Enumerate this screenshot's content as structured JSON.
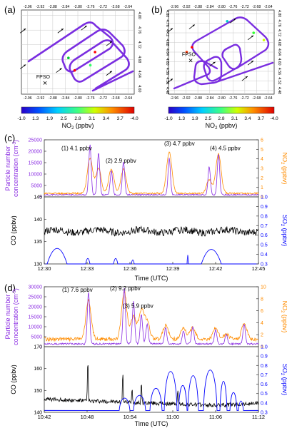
{
  "colors": {
    "purple": "#8a2be2",
    "orange": "#ff8c00",
    "black": "#000000",
    "blue": "#0000ff",
    "red": "#ff0000",
    "grid": "#c8c8c8",
    "axis": "#333333"
  },
  "panel_labels": {
    "a": "(a)",
    "b": "(b)",
    "c": "(c)",
    "d": "(d)"
  },
  "chart_data": [
    {
      "id": "a",
      "type": "map-track",
      "x_ticks": [
        "-2.96",
        "-2.92",
        "-2.88",
        "-2.84",
        "-2.80",
        "-2.76",
        "-2.72",
        "-2.68",
        "-2.64"
      ],
      "y_ticks": [
        "4.80",
        "4.76",
        "4.72",
        "4.68",
        "4.64",
        "4.60"
      ],
      "xlim": [
        -2.98,
        -2.62
      ],
      "ylim": [
        4.585,
        4.815
      ],
      "fpso_label": "FPSO",
      "fpso": {
        "lon": -2.905,
        "lat": 4.622
      },
      "arrows": [
        {
          "lon": -2.975,
          "lat": 4.758
        },
        {
          "lon": -2.975,
          "lat": 4.66
        },
        {
          "lon": -2.855,
          "lat": 4.758
        },
        {
          "lon": -2.78,
          "lat": 4.766
        },
        {
          "lon": -2.7,
          "lat": 4.723
        },
        {
          "lon": -2.7,
          "lat": 4.642
        },
        {
          "lon": -2.86,
          "lat": 4.65
        }
      ],
      "hotspots": [
        {
          "lon": -2.745,
          "lat": 4.7,
          "color": "#ff0000"
        },
        {
          "lon": -2.83,
          "lat": 4.684,
          "color": "#00cc33"
        },
        {
          "lon": -2.76,
          "lat": 4.664,
          "color": "#33ff66"
        },
        {
          "lon": -2.81,
          "lat": 4.65,
          "color": "#ff0000"
        }
      ],
      "colorbar": {
        "ticks": [
          "-1.0",
          "1.3",
          "1.9",
          "2.5",
          "2.8",
          "3.1",
          "3.4",
          "3.7",
          "-4.0"
        ],
        "label": "NO",
        "label_sub": "2",
        "unit": " (ppbv)"
      }
    },
    {
      "id": "b",
      "type": "map-track",
      "x_ticks": [
        "-2.96",
        "-2.92",
        "-2.88",
        "-2.84",
        "-2.80",
        "-2.76",
        "-2.72",
        "-2.68",
        "-2.64"
      ],
      "y_ticks": [
        "4.80",
        "4.76",
        "4.72",
        "4.68",
        "4.64",
        "4.60",
        "4.56",
        "4.52",
        "4.48"
      ],
      "xlim": [
        -2.98,
        -2.62
      ],
      "ylim": [
        4.465,
        4.815
      ],
      "fpso_label": "FPSO",
      "fpso": {
        "lon": -2.905,
        "lat": 4.615
      },
      "arrows": [
        {
          "lon": -2.975,
          "lat": 4.73
        },
        {
          "lon": -2.975,
          "lat": 4.52
        },
        {
          "lon": -2.9,
          "lat": 4.745
        },
        {
          "lon": -2.76,
          "lat": 4.77
        },
        {
          "lon": -2.7,
          "lat": 4.7
        },
        {
          "lon": -2.7,
          "lat": 4.595
        },
        {
          "lon": -2.72,
          "lat": 4.53
        },
        {
          "lon": -2.83,
          "lat": 4.59
        }
      ],
      "hotspots": [
        {
          "lon": -2.9,
          "lat": 4.66,
          "color": "#ff0000"
        },
        {
          "lon": -2.918,
          "lat": 4.64,
          "color": "#ff3300"
        },
        {
          "lon": -2.78,
          "lat": 4.768,
          "color": "#00cccc"
        },
        {
          "lon": -2.69,
          "lat": 4.72,
          "color": "#33ff33"
        },
        {
          "lon": -2.655,
          "lat": 4.69,
          "color": "#ccff00"
        }
      ],
      "colorbar": {
        "ticks": [
          "-1.0",
          "1.3",
          "1.9",
          "2.5",
          "2.8",
          "3.1",
          "3.4",
          "3.7",
          "-4.0"
        ],
        "label": "NO",
        "label_sub": "2",
        "unit": " (ppbv)"
      }
    },
    {
      "id": "c-top",
      "type": "line",
      "ylabel": "Particle number concentration (cm-3)",
      "ylabel_line1": "Particle number",
      "ylabel_line2": "concentration (cm",
      "ylabel_sup": "-3",
      "ylabel_close": ")",
      "y2label": "NO",
      "y2label_sub": "2",
      "y2label_unit": " (ppbv)",
      "xlim": [
        0,
        15
      ],
      "ylim": [
        0,
        25000
      ],
      "y2lim": [
        0,
        6
      ],
      "y_ticks": [
        "0",
        "5000",
        "10000",
        "15000",
        "20000",
        "25000"
      ],
      "y_tick_values": [
        0,
        5000,
        10000,
        15000,
        20000,
        25000
      ],
      "y2_ticks": [
        "0",
        "1",
        "2",
        "3",
        "4",
        "5",
        "6"
      ],
      "y2_tick_values": [
        0,
        1,
        2,
        3,
        4,
        5,
        6
      ],
      "annotations": [
        {
          "text": "(1) 4.1 ppbv",
          "x": 1.2,
          "y": 20500
        },
        {
          "text": "(2) 2.9 ppbv",
          "x": 4.3,
          "y": 15000
        },
        {
          "text": "(3) 4.7 ppbv",
          "x": 8.4,
          "y": 22500
        },
        {
          "text": "(4) 4.5 ppbv",
          "x": 11.6,
          "y": 20500
        }
      ],
      "peaks": [
        {
          "x": 3.2,
          "p": 22000,
          "n": 4.1
        },
        {
          "x": 3.8,
          "p": 18500,
          "n": 3.0
        },
        {
          "x": 4.7,
          "p": 10500,
          "n": 2.9
        },
        {
          "x": 5.55,
          "p": 14500,
          "n": 2.9
        },
        {
          "x": 8.75,
          "p": 16000,
          "n": 4.7
        },
        {
          "x": 11.55,
          "p": 12500,
          "n": 1.8
        },
        {
          "x": 12.2,
          "p": 18000,
          "n": 4.5
        }
      ]
    },
    {
      "id": "c-bottom",
      "type": "line",
      "ylabel": "CO (ppbv)",
      "y2label": "SO",
      "y2label_sub": "2",
      "y2label_unit": " (ppbv)",
      "xlim": [
        0,
        15
      ],
      "ylim": [
        130,
        145
      ],
      "y2lim": [
        0.3,
        1.0
      ],
      "y_ticks": [
        "130",
        "135",
        "140",
        "145"
      ],
      "y_tick_values": [
        130,
        135,
        140,
        145
      ],
      "y2_ticks": [
        "0.3",
        "0.4",
        "0.5",
        "0.6",
        "0.7",
        "0.8",
        "0.9",
        "1.0"
      ],
      "y2_tick_values": [
        0.3,
        0.4,
        0.5,
        0.6,
        0.7,
        0.8,
        0.9,
        1.0
      ],
      "x_ticks": [
        "12:30",
        "12:33",
        "12:36",
        "12:39",
        "12:42",
        "12:45"
      ],
      "x_tick_values": [
        0,
        3,
        6,
        9,
        12,
        15
      ],
      "xlabel": "Time (UTC)",
      "co_baseline": 137.3,
      "so2_events": [
        {
          "x0": 0.2,
          "x1": 1.6,
          "peak": 0.58
        },
        {
          "x0": 2.9,
          "x1": 3.2,
          "peak": 0.37
        },
        {
          "x0": 4.85,
          "x1": 5.15,
          "peak": 0.37
        },
        {
          "x0": 6.1,
          "x1": 6.3,
          "peak": 0.34
        },
        {
          "x0": 10.0,
          "x1": 10.1,
          "peak": 0.44
        },
        {
          "x0": 11.0,
          "x1": 12.4,
          "peak": 0.56
        }
      ]
    },
    {
      "id": "d-top",
      "type": "line",
      "ylabel": "Particle number concentration (cm-3)",
      "ylabel_line1": "Particle number",
      "ylabel_line2": "concentration (cm",
      "ylabel_sup": "-3",
      "ylabel_close": ")",
      "y2label": "NO",
      "y2label_sub": "2",
      "y2label_unit": " (ppbv)",
      "xlim": [
        0,
        30
      ],
      "ylim": [
        0,
        30000
      ],
      "y2lim": [
        0,
        10
      ],
      "y_ticks": [
        "0",
        "5000",
        "10000",
        "15000",
        "20000",
        "25000",
        "30000"
      ],
      "y_tick_values": [
        0,
        5000,
        10000,
        15000,
        20000,
        25000,
        30000
      ],
      "y2_ticks": [
        "0",
        "2",
        "4",
        "6",
        "8",
        "10"
      ],
      "y2_tick_values": [
        0,
        2,
        4,
        6,
        8,
        10
      ],
      "annotations": [
        {
          "text": "(1) 7.6 ppbv",
          "x": 2.5,
          "y": 27500
        },
        {
          "text": "(2) 9.2 ppbv",
          "x": 9.2,
          "y": 28200
        },
        {
          "text": "(3) 5.9 ppbv",
          "x": 11.0,
          "y": 19500
        }
      ],
      "peaks": [
        {
          "x": 6.2,
          "p": 25500,
          "n": 7.6
        },
        {
          "x": 11.2,
          "p": 28000,
          "n": 9.2
        },
        {
          "x": 12.5,
          "p": 21000,
          "n": 5.0
        },
        {
          "x": 13.6,
          "p": 15000,
          "n": 5.9
        },
        {
          "x": 14.4,
          "p": 10000,
          "n": 4.0
        },
        {
          "x": 17.0,
          "p": 8000,
          "n": 3.5
        },
        {
          "x": 19.5,
          "p": 6500,
          "n": 3.0
        },
        {
          "x": 20.8,
          "p": 8500,
          "n": 3.2
        },
        {
          "x": 24.0,
          "p": 7000,
          "n": 3.0
        },
        {
          "x": 25.5,
          "p": 5000,
          "n": 2.0
        },
        {
          "x": 28.0,
          "p": 9500,
          "n": 3.8
        }
      ]
    },
    {
      "id": "d-bottom",
      "type": "line",
      "ylabel": "CO (ppbv)",
      "y2label": "SO",
      "y2label_sub": "2",
      "y2label_unit": " (ppbv)",
      "xlim": [
        0,
        30
      ],
      "ylim": [
        140,
        170
      ],
      "y2lim": [
        0.3,
        1.0
      ],
      "y_ticks": [
        "140",
        "150",
        "160",
        "170"
      ],
      "y_tick_values": [
        140,
        150,
        160,
        170
      ],
      "y2_ticks": [
        "0.3",
        "0.4",
        "0.5",
        "0.6",
        "0.7",
        "0.8",
        "0.9",
        "1.0"
      ],
      "y2_tick_values": [
        0.3,
        0.4,
        0.5,
        0.6,
        0.7,
        0.8,
        0.9,
        1.0
      ],
      "x_ticks": [
        "10:42",
        "10:48",
        "10:54",
        "11:00",
        "11:06",
        "11:12"
      ],
      "x_tick_values": [
        0,
        6,
        12,
        18,
        24,
        30
      ],
      "xlabel": "Time (UTC)",
      "co_spikes": [
        {
          "x": 6.1,
          "v": 167
        },
        {
          "x": 11.0,
          "v": 160
        },
        {
          "x": 12.3,
          "v": 152
        },
        {
          "x": 13.6,
          "v": 155
        },
        {
          "x": 18.7,
          "v": 151
        }
      ],
      "so2_events": [
        {
          "x0": 10.5,
          "x1": 12.0,
          "peak": 0.48
        },
        {
          "x0": 12.5,
          "x1": 14.2,
          "peak": 0.52
        },
        {
          "x0": 14.8,
          "x1": 16.5,
          "peak": 0.62
        },
        {
          "x0": 16.8,
          "x1": 18.6,
          "peak": 0.86
        },
        {
          "x0": 18.8,
          "x1": 20.0,
          "peak": 0.66
        },
        {
          "x0": 20.1,
          "x1": 21.6,
          "peak": 0.8
        },
        {
          "x0": 22.3,
          "x1": 24.2,
          "peak": 0.88
        },
        {
          "x0": 24.6,
          "x1": 25.6,
          "peak": 0.72
        },
        {
          "x0": 26.0,
          "x1": 27.0,
          "peak": 0.56
        },
        {
          "x0": 27.2,
          "x1": 27.9,
          "peak": 0.44
        }
      ]
    }
  ]
}
